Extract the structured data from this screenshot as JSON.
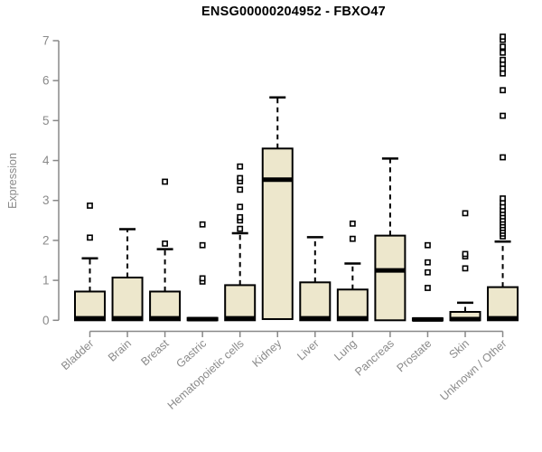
{
  "title": "ENSG00000204952 - FBXO47",
  "colors": {
    "box_fill": "#EDE7CC",
    "box_stroke": "#000000",
    "median": "#000000",
    "whisker": "#000000",
    "outlier_stroke": "#000000",
    "outlier_fill": "#ffffff",
    "axis": "#888888",
    "tick_label": "#8a8a8a",
    "title_color": "#000000"
  },
  "chart_data": {
    "type": "boxplot",
    "title": "ENSG00000204952 - FBXO47",
    "xlabel": "",
    "ylabel": "Expression",
    "ylim": [
      0,
      7
    ],
    "yticks": [
      0,
      1,
      2,
      3,
      4,
      5,
      6,
      7
    ],
    "grid": false,
    "legend": false,
    "categories": [
      "Bladder",
      "Brain",
      "Breast",
      "Gastric",
      "Hematopoietic cells",
      "Kidney",
      "Liver",
      "Lung",
      "Pancreas",
      "Prostate",
      "Skin",
      "Unknown / Other"
    ],
    "series": [
      {
        "name": "Bladder",
        "whisker_low": 0,
        "q1": 0,
        "median": 0.05,
        "q3": 0.72,
        "whisker_high": 1.55,
        "outliers": [
          2.07,
          2.87
        ]
      },
      {
        "name": "Brain",
        "whisker_low": 0,
        "q1": 0,
        "median": 0.05,
        "q3": 1.07,
        "whisker_high": 2.28,
        "outliers": []
      },
      {
        "name": "Breast",
        "whisker_low": 0,
        "q1": 0,
        "median": 0.05,
        "q3": 0.72,
        "whisker_high": 1.78,
        "outliers": [
          1.92,
          3.47
        ]
      },
      {
        "name": "Gastric",
        "whisker_low": 0,
        "q1": 0,
        "median": 0.03,
        "q3": 0.06,
        "whisker_high": 0.06,
        "outliers": [
          0.97,
          1.05,
          1.88,
          2.4
        ]
      },
      {
        "name": "Hematopoietic cells",
        "whisker_low": 0,
        "q1": 0,
        "median": 0.05,
        "q3": 0.88,
        "whisker_high": 2.18,
        "outliers": [
          2.29,
          2.5,
          2.58,
          2.84,
          3.27,
          3.48,
          3.56,
          3.85
        ]
      },
      {
        "name": "Kidney",
        "whisker_low": 0.03,
        "q1": 0.03,
        "median": 3.52,
        "q3": 4.3,
        "whisker_high": 5.58,
        "outliers": []
      },
      {
        "name": "Liver",
        "whisker_low": 0,
        "q1": 0,
        "median": 0.05,
        "q3": 0.95,
        "whisker_high": 2.08,
        "outliers": []
      },
      {
        "name": "Lung",
        "whisker_low": 0,
        "q1": 0,
        "median": 0.05,
        "q3": 0.77,
        "whisker_high": 1.42,
        "outliers": [
          2.04,
          2.42
        ]
      },
      {
        "name": "Pancreas",
        "whisker_low": 0,
        "q1": 0,
        "median": 1.25,
        "q3": 2.12,
        "whisker_high": 4.05,
        "outliers": []
      },
      {
        "name": "Prostate",
        "whisker_low": 0,
        "q1": 0,
        "median": 0.02,
        "q3": 0.05,
        "whisker_high": 0.05,
        "outliers": [
          0.81,
          1.2,
          1.45,
          1.88
        ]
      },
      {
        "name": "Skin",
        "whisker_low": 0,
        "q1": 0,
        "median": 0.03,
        "q3": 0.21,
        "whisker_high": 0.44,
        "outliers": [
          1.3,
          1.6,
          1.66,
          2.68
        ]
      },
      {
        "name": "Unknown / Other",
        "whisker_low": 0,
        "q1": 0,
        "median": 0.05,
        "q3": 0.83,
        "whisker_high": 1.97,
        "outliers": [
          2.1,
          2.17,
          2.24,
          2.31,
          2.38,
          2.45,
          2.52,
          2.6,
          2.68,
          2.76,
          2.85,
          2.95,
          3.05,
          4.08,
          5.12,
          5.76,
          6.18,
          6.3,
          6.42,
          6.52,
          6.7,
          6.85,
          7.02,
          7.1
        ]
      }
    ]
  }
}
